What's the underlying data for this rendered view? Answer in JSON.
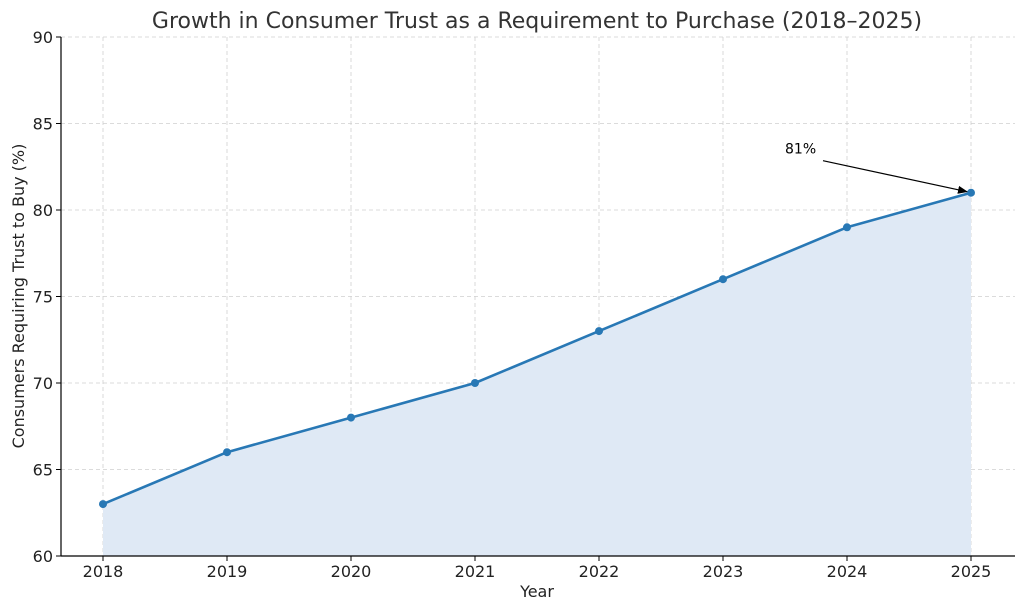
{
  "chart_data": {
    "type": "area",
    "title": "Growth in Consumer Trust as a Requirement to Purchase (2018–2025)",
    "xlabel": "Year",
    "ylabel": "Consumers Requiring Trust to Buy (%)",
    "x": [
      "2018",
      "2019",
      "2020",
      "2021",
      "2022",
      "2023",
      "2024",
      "2025"
    ],
    "series": [
      {
        "name": "Consumers Requiring Trust to Buy",
        "values": [
          63,
          66,
          68,
          70,
          73,
          76,
          79,
          81
        ]
      }
    ],
    "ylim": [
      60,
      90
    ],
    "yticks": [
      "60",
      "65",
      "70",
      "75",
      "80",
      "85",
      "90"
    ],
    "grid": true,
    "annotations": [
      {
        "text": "81%",
        "target_x": "2025",
        "target_y": 81
      }
    ],
    "colors": {
      "line": "#2878b5",
      "fill": "#dfe9f5",
      "marker": "#2878b5"
    }
  }
}
